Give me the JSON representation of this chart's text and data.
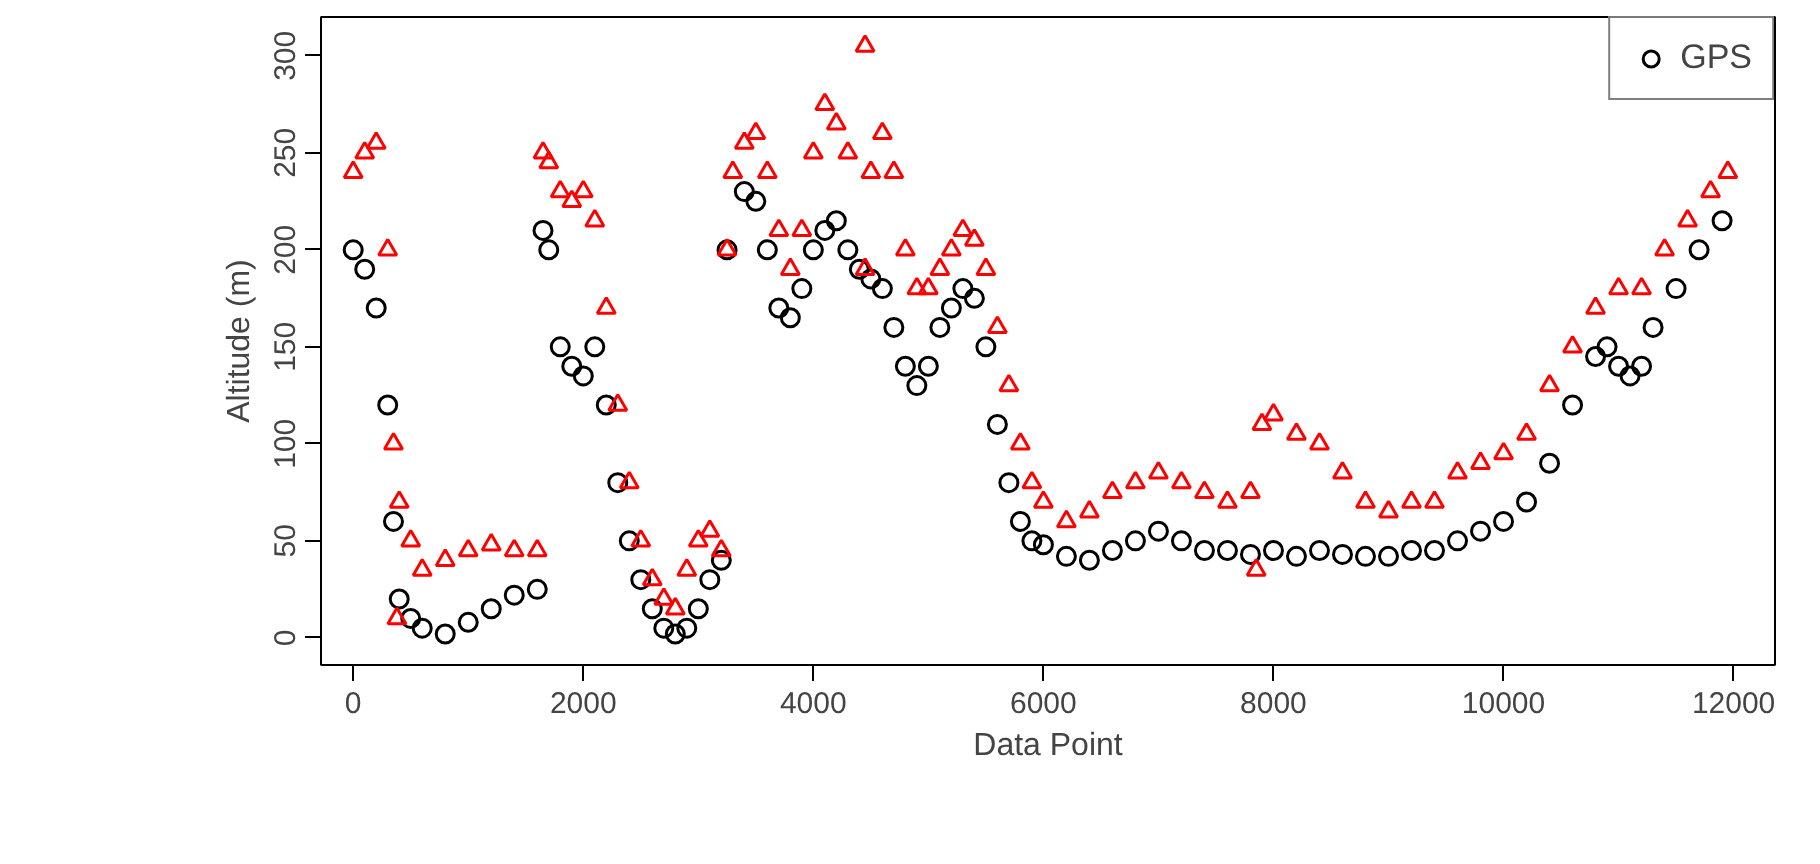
{
  "chart_data": {
    "type": "scatter",
    "xlabel": "Data Point",
    "ylabel": "Altitude (m)",
    "xlim": [
      -280,
      12360
    ],
    "ylim": [
      -14,
      320
    ],
    "xticks": [
      0,
      2000,
      4000,
      6000,
      8000,
      10000,
      12000
    ],
    "yticks": [
      0,
      50,
      100,
      150,
      200,
      250,
      300
    ],
    "grid": false,
    "legend": "top right",
    "series": [
      {
        "name": "GPS",
        "color": "#000000",
        "marker": "circle",
        "x": [
          0,
          100,
          200,
          300,
          350,
          400,
          500,
          600,
          800,
          1000,
          1200,
          1400,
          1600,
          1650,
          1700,
          1800,
          1900,
          2000,
          2100,
          2200,
          2300,
          2400,
          2500,
          2600,
          2700,
          2800,
          2900,
          3000,
          3100,
          3200,
          3250,
          3400,
          3500,
          3600,
          3700,
          3800,
          3900,
          4000,
          4100,
          4200,
          4300,
          4400,
          4500,
          4600,
          4700,
          4800,
          4900,
          5000,
          5100,
          5200,
          5300,
          5400,
          5500,
          5600,
          5700,
          5800,
          5900,
          6000,
          6200,
          6400,
          6600,
          6800,
          7000,
          7200,
          7400,
          7600,
          7800,
          8000,
          8200,
          8400,
          8600,
          8800,
          9000,
          9200,
          9400,
          9600,
          9800,
          10000,
          10200,
          10400,
          10600,
          10800,
          10900,
          11000,
          11100,
          11200,
          11300,
          11500,
          11700,
          11900
        ],
        "values": [
          200,
          190,
          170,
          120,
          60,
          20,
          10,
          5,
          2,
          8,
          15,
          22,
          25,
          210,
          200,
          150,
          140,
          135,
          150,
          120,
          80,
          50,
          30,
          15,
          5,
          2,
          5,
          15,
          30,
          40,
          200,
          230,
          225,
          200,
          170,
          165,
          180,
          200,
          210,
          215,
          200,
          190,
          185,
          180,
          160,
          140,
          130,
          140,
          160,
          170,
          180,
          175,
          150,
          110,
          80,
          60,
          50,
          48,
          42,
          40,
          45,
          50,
          55,
          50,
          45,
          45,
          43,
          45,
          42,
          45,
          43,
          42,
          42,
          45,
          45,
          50,
          55,
          60,
          70,
          90,
          120,
          145,
          150,
          140,
          135,
          140,
          160,
          180,
          200,
          215
        ]
      },
      {
        "color": "#ff0000",
        "marker": "triangle",
        "x": [
          0,
          100,
          200,
          300,
          350,
          380,
          400,
          500,
          600,
          800,
          1000,
          1200,
          1400,
          1600,
          1650,
          1700,
          1800,
          1900,
          2000,
          2100,
          2200,
          2300,
          2400,
          2500,
          2600,
          2700,
          2800,
          2900,
          3000,
          3100,
          3200,
          3250,
          3300,
          3400,
          3500,
          3600,
          3700,
          3800,
          3900,
          4000,
          4100,
          4200,
          4300,
          4450,
          4450,
          4500,
          4600,
          4700,
          4800,
          4900,
          5000,
          5100,
          5200,
          5300,
          5400,
          5500,
          5600,
          5700,
          5800,
          5900,
          6000,
          6200,
          6400,
          6600,
          6800,
          7000,
          7200,
          7400,
          7600,
          7800,
          7850,
          7900,
          8000,
          8200,
          8400,
          8600,
          8800,
          9000,
          9200,
          9400,
          9600,
          9800,
          10000,
          10200,
          10400,
          10600,
          10800,
          11000,
          11200,
          11400,
          11600,
          11800,
          11950
        ],
        "values": [
          240,
          250,
          255,
          200,
          100,
          10,
          70,
          50,
          35,
          40,
          45,
          48,
          45,
          45,
          250,
          245,
          230,
          225,
          230,
          215,
          170,
          120,
          80,
          50,
          30,
          20,
          15,
          35,
          50,
          55,
          45,
          200,
          240,
          255,
          260,
          240,
          210,
          190,
          210,
          250,
          275,
          265,
          250,
          305,
          190,
          240,
          260,
          240,
          200,
          180,
          180,
          190,
          200,
          210,
          205,
          190,
          160,
          130,
          100,
          80,
          70,
          60,
          65,
          75,
          80,
          85,
          80,
          75,
          70,
          75,
          35,
          110,
          115,
          105,
          100,
          85,
          70,
          65,
          70,
          70,
          85,
          90,
          95,
          105,
          130,
          150,
          170,
          180,
          180,
          200,
          215,
          230,
          240
        ]
      }
    ]
  }
}
